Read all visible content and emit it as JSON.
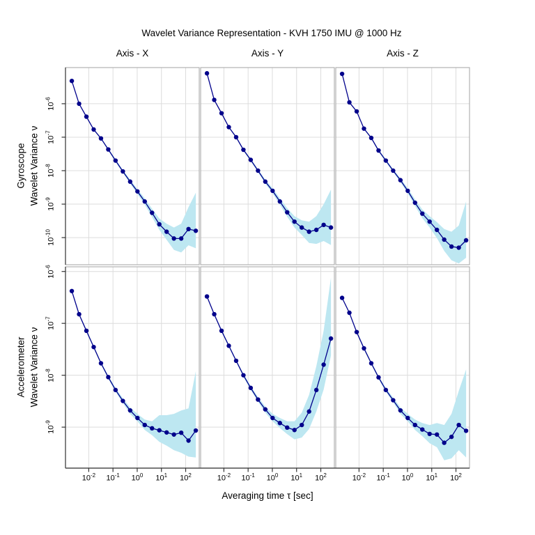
{
  "title": "Wavelet Variance Representation - KVH 1750 IMU @ 1000 Hz",
  "xlabel": "Averaging time τ [sec]",
  "chart_data": {
    "type": "line",
    "layout": "lattice 2 rows x 3 cols, log-log axes, points + line + confidence band",
    "legend": "none",
    "grid": "on",
    "col_labels": [
      "Axis - X",
      "Axis - Y",
      "Axis - Z"
    ],
    "x_name": "tau_sec",
    "x": [
      0.002,
      0.004,
      0.008,
      0.016,
      0.032,
      0.064,
      0.128,
      0.256,
      0.512,
      1.024,
      2.048,
      4.096,
      8.192,
      16.384,
      32.768,
      65.536,
      131.072,
      262.144
    ],
    "x_ticks_exp": [
      -2,
      -1,
      0,
      1,
      2
    ],
    "xlim_log": [
      -2.96,
      2.56
    ],
    "colors": {
      "line": "#00008B",
      "point": "#00008B",
      "band": "#BDE7F1",
      "grid": "#DCDCDC",
      "panel_border": "#A3A3A3",
      "axis_line": "#4D4D4D",
      "tick": "#333333",
      "text": "#000000"
    },
    "rows": [
      {
        "instrument": "Gyroscope",
        "ylabel": "Wavelet Variance ν",
        "y_ticks_exp": [
          -6,
          -7,
          -8,
          -9,
          -10
        ],
        "ylim_log": [
          -10.81,
          -4.92
        ],
        "panels": [
          {
            "axis": "X",
            "values": [
              4.8e-06,
              1e-06,
              4.1e-07,
              1.7e-07,
              9.2e-08,
              4.3e-08,
              2e-08,
              9.5e-09,
              4.7e-09,
              2.4e-09,
              1.2e-09,
              5.5e-10,
              2.5e-10,
              1.5e-10,
              9.4e-11,
              9.4e-11,
              1.8e-10,
              1.6e-10
            ],
            "band_hi": [
              5e-06,
              1.04e-06,
              4.3e-07,
              1.8e-07,
              9.8e-08,
              4.6e-08,
              2.2e-08,
              1.05e-08,
              5.4e-09,
              2.8e-09,
              1.5e-09,
              7.3e-10,
              3.7e-10,
              2.6e-10,
              2e-10,
              2.6e-10,
              8.1e-10,
              2.2e-09
            ],
            "band_lo": [
              4.6e-06,
              9.6e-07,
              3.9e-07,
              1.6e-07,
              8.6e-08,
              4e-08,
              1.8e-08,
              8.6e-09,
              4.1e-09,
              2e-09,
              9.6e-10,
              4.1e-10,
              1.7e-10,
              8.6e-11,
              4.3e-11,
              3.6e-11,
              5.9e-11,
              4.8e-11
            ]
          },
          {
            "axis": "Y",
            "values": [
              8.1e-06,
              1.3e-06,
              5.2e-07,
              2e-07,
              1e-07,
              4.2e-08,
              2.1e-08,
              1e-08,
              4.7e-09,
              2.5e-09,
              1.2e-09,
              5.7e-10,
              3e-10,
              2e-10,
              1.5e-10,
              1.7e-10,
              2.4e-10,
              2e-10
            ],
            "band_hi": [
              8.4e-06,
              1.35e-06,
              5.5e-07,
              2.1e-07,
              1.06e-07,
              4.5e-08,
              2.3e-08,
              1.1e-08,
              5.4e-09,
              3e-09,
              1.5e-09,
              7.6e-10,
              4.4e-10,
              3.3e-10,
              3e-10,
              4.4e-10,
              9.9e-10,
              2.7e-09
            ],
            "band_lo": [
              7.8e-06,
              1.25e-06,
              4.9e-07,
              1.9e-07,
              9.4e-08,
              3.9e-08,
              1.9e-08,
              9e-09,
              4.1e-09,
              2.1e-09,
              9.6e-10,
              4.2e-10,
              2e-10,
              1.2e-10,
              6.9e-11,
              6.5e-11,
              7.9e-11,
              6e-11
            ]
          },
          {
            "axis": "Z",
            "values": [
              7.8e-06,
              1.1e-06,
              5.9e-07,
              1.8e-07,
              9.5e-08,
              4e-08,
              2e-08,
              1e-08,
              5.2e-09,
              2.5e-09,
              1.1e-09,
              5.2e-10,
              3e-10,
              1.7e-10,
              8.7e-11,
              5.4e-11,
              5e-11,
              8.3e-11
            ],
            "band_hi": [
              8.1e-06,
              1.14e-06,
              6.2e-07,
              1.9e-07,
              1e-07,
              4.3e-08,
              2.2e-08,
              1.1e-08,
              5.9e-09,
              3e-09,
              1.4e-09,
              6.9e-10,
              4.4e-10,
              2.9e-10,
              1.8e-10,
              1.5e-10,
              2.3e-10,
              1.2e-09
            ],
            "band_lo": [
              7.5e-06,
              1.06e-06,
              5.6e-07,
              1.7e-07,
              8.9e-08,
              3.7e-08,
              1.8e-08,
              9e-09,
              4.5e-09,
              2.1e-09,
              8.8e-10,
              3.8e-10,
              2e-10,
              9.7e-11,
              4e-11,
              2.1e-11,
              1.7e-11,
              2.5e-11
            ]
          }
        ]
      },
      {
        "instrument": "Accelerometer",
        "ylabel": "Wavelet Variance ν",
        "y_ticks_exp": [
          -6,
          -7,
          -8,
          -9
        ],
        "ylim_log": [
          -9.79,
          -5.91
        ],
        "panels": [
          {
            "axis": "X",
            "values": [
              4.2e-07,
              1.5e-07,
              7.2e-08,
              3.5e-08,
              1.7e-08,
              9.2e-09,
              5.2e-09,
              3.2e-09,
              2.1e-09,
              1.5e-09,
              1.1e-09,
              9.5e-10,
              8.7e-10,
              7.9e-10,
              7.2e-10,
              7.8e-10,
              5.5e-10,
              8.6e-10
            ],
            "band_hi": [
              4.4e-07,
              1.56e-07,
              7.6e-08,
              3.7e-08,
              1.8e-08,
              9.8e-09,
              5.7e-09,
              3.6e-09,
              2.4e-09,
              1.8e-09,
              1.4e-09,
              1.3e-09,
              1.7e-09,
              1.7e-09,
              1.8e-09,
              2.1e-09,
              2.3e-09,
              1.2e-08
            ],
            "band_lo": [
              4e-07,
              1.44e-07,
              6.8e-08,
              3.3e-08,
              1.6e-08,
              8.6e-09,
              4.8e-09,
              2.9e-09,
              1.8e-09,
              1.3e-09,
              8.8e-10,
              7e-10,
              5.2e-10,
              4.4e-10,
              3.6e-10,
              3.2e-10,
              2.7e-10,
              2.6e-10
            ]
          },
          {
            "axis": "Y",
            "values": [
              3.3e-07,
              1.5e-07,
              7.2e-08,
              3.7e-08,
              1.9e-08,
              1e-08,
              5.7e-09,
              3.4e-09,
              2.2e-09,
              1.5e-09,
              1.2e-09,
              9.8e-10,
              8.8e-10,
              1.1e-09,
              2e-09,
              5.2e-09,
              1.6e-08,
              5.1e-08
            ],
            "band_hi": [
              3.4e-07,
              1.56e-07,
              7.6e-08,
              3.9e-08,
              2e-08,
              1.07e-08,
              6.2e-09,
              3.8e-09,
              2.5e-09,
              1.8e-09,
              1.5e-09,
              1.3e-09,
              1.3e-09,
              1.9e-09,
              4.2e-09,
              1.5e-08,
              7.2e-08,
              7.6e-07
            ],
            "band_lo": [
              3.2e-07,
              1.44e-07,
              6.8e-08,
              3.5e-08,
              1.8e-08,
              9.3e-09,
              5.2e-09,
              3.1e-09,
              1.9e-09,
              1.3e-09,
              9.6e-10,
              7.3e-10,
              5.8e-10,
              6.3e-10,
              9.2e-10,
              2e-09,
              5.3e-09,
              2.4e-08
            ]
          },
          {
            "axis": "Z",
            "values": [
              3.1e-07,
              1.6e-07,
              6.8e-08,
              3.3e-08,
              1.7e-08,
              9.1e-09,
              5.2e-09,
              3.3e-09,
              2.1e-09,
              1.5e-09,
              1.1e-09,
              9e-10,
              7.4e-10,
              7.2e-10,
              5e-10,
              6.5e-10,
              1.1e-09,
              8.5e-10
            ],
            "band_hi": [
              3.2e-07,
              1.66e-07,
              7.1e-08,
              3.5e-08,
              1.8e-08,
              9.7e-09,
              5.7e-09,
              3.7e-09,
              2.4e-09,
              1.8e-09,
              1.4e-09,
              1.2e-09,
              1.1e-09,
              1.2e-09,
              1.1e-09,
              1.8e-09,
              5e-09,
              1.3e-08
            ],
            "band_lo": [
              3e-07,
              1.54e-07,
              6.5e-08,
              3.1e-08,
              1.6e-08,
              8.5e-09,
              4.8e-09,
              3e-09,
              1.8e-09,
              1.3e-09,
              8.8e-10,
              6.7e-10,
              4.9e-10,
              4.1e-10,
              2.3e-10,
              2.5e-10,
              3.6e-10,
              2.6e-10
            ]
          }
        ]
      }
    ]
  }
}
